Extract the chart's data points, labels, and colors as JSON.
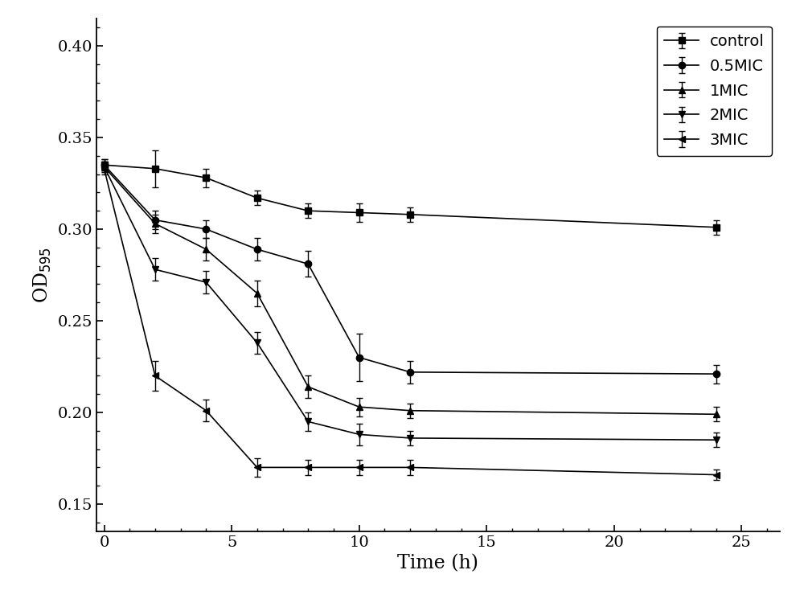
{
  "x_time": [
    0,
    2,
    4,
    6,
    8,
    10,
    12,
    24
  ],
  "series": {
    "control": {
      "y": [
        0.335,
        0.333,
        0.328,
        0.317,
        0.31,
        0.309,
        0.308,
        0.301
      ],
      "yerr": [
        0.003,
        0.01,
        0.005,
        0.004,
        0.004,
        0.005,
        0.004,
        0.004
      ],
      "marker": "s",
      "label": "control"
    },
    "0.5MIC": {
      "y": [
        0.335,
        0.305,
        0.3,
        0.289,
        0.281,
        0.23,
        0.222,
        0.221
      ],
      "yerr": [
        0.003,
        0.005,
        0.005,
        0.006,
        0.007,
        0.013,
        0.006,
        0.005
      ],
      "marker": "o",
      "label": "0.5MIC"
    },
    "1MIC": {
      "y": [
        0.334,
        0.303,
        0.289,
        0.265,
        0.214,
        0.203,
        0.201,
        0.199
      ],
      "yerr": [
        0.003,
        0.005,
        0.006,
        0.007,
        0.006,
        0.005,
        0.004,
        0.004
      ],
      "marker": "^",
      "label": "1MIC"
    },
    "2MIC": {
      "y": [
        0.334,
        0.278,
        0.271,
        0.238,
        0.195,
        0.188,
        0.186,
        0.185
      ],
      "yerr": [
        0.003,
        0.006,
        0.006,
        0.006,
        0.005,
        0.006,
        0.004,
        0.004
      ],
      "marker": "v",
      "label": "2MIC"
    },
    "3MIC": {
      "y": [
        0.333,
        0.22,
        0.201,
        0.17,
        0.17,
        0.17,
        0.17,
        0.166
      ],
      "yerr": [
        0.003,
        0.008,
        0.006,
        0.005,
        0.004,
        0.004,
        0.004,
        0.003
      ],
      "marker": "<",
      "label": "3MIC"
    }
  },
  "series_order": [
    "control",
    "0.5MIC",
    "1MIC",
    "2MIC",
    "3MIC"
  ],
  "xlabel": "Time (h)",
  "ylabel": "OD$_{595}$",
  "xlim": [
    -0.3,
    26.5
  ],
  "ylim": [
    0.135,
    0.415
  ],
  "yticks": [
    0.15,
    0.2,
    0.25,
    0.3,
    0.35,
    0.4
  ],
  "xticks": [
    0,
    5,
    10,
    15,
    20,
    25
  ],
  "color": "#000000",
  "linewidth": 1.2,
  "markersize": 6,
  "capsize": 3,
  "legend_loc": "upper right",
  "figure_width": 10.0,
  "figure_height": 7.6,
  "dpi": 100
}
